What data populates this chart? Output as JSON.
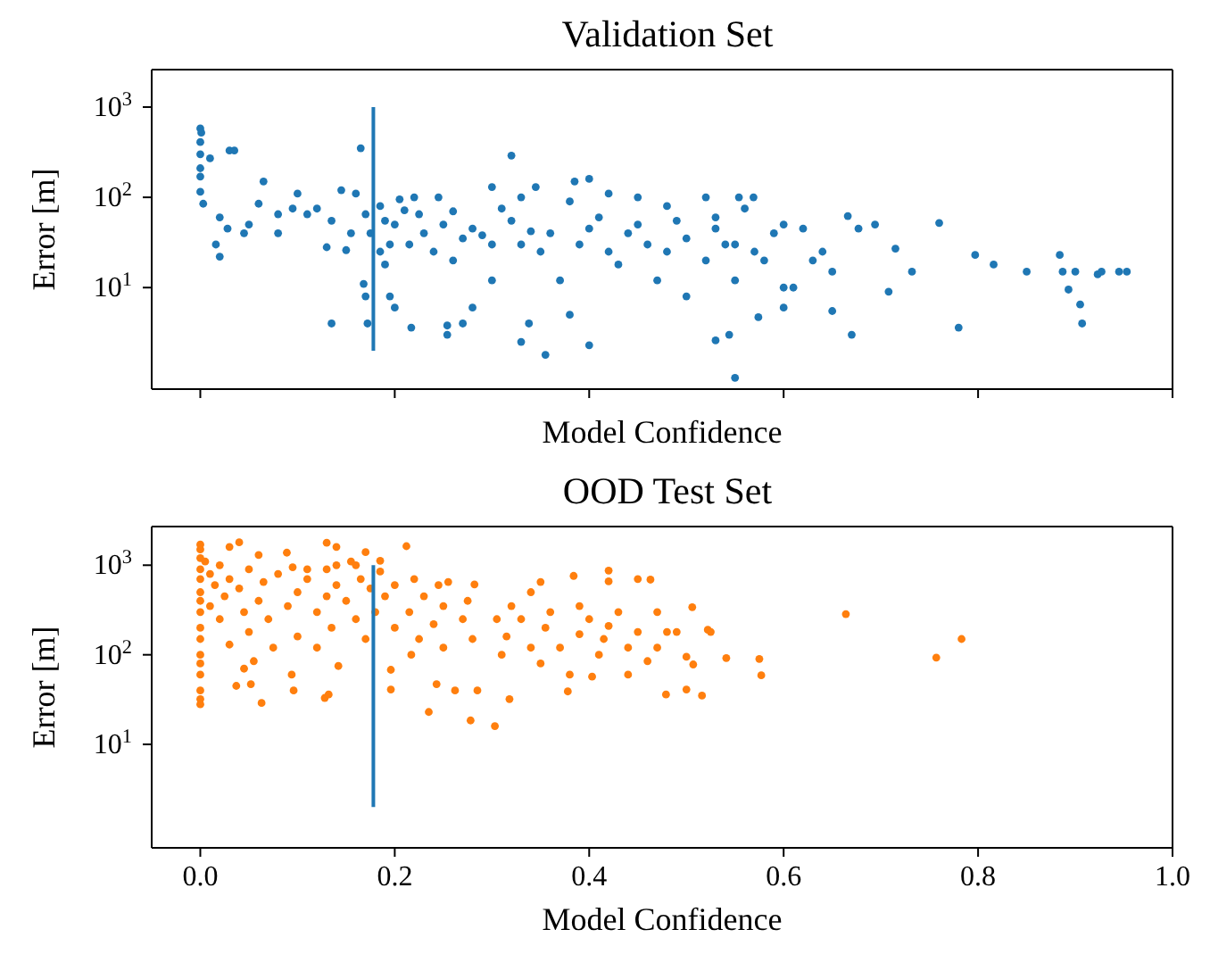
{
  "chart_data": [
    {
      "type": "scatter",
      "title": "Validation Set",
      "xlabel": "Model Confidence",
      "ylabel": "Error [m]",
      "xlim": [
        -0.05,
        1.0
      ],
      "xticks": [
        {
          "value": 0,
          "label": null
        },
        {
          "value": 0.2,
          "label": null
        },
        {
          "value": 0.4,
          "label": null
        },
        {
          "value": 0.6,
          "label": null
        },
        {
          "value": 0.8,
          "label": null
        },
        {
          "value": 1.0,
          "label": null
        }
      ],
      "ylim": [
        0.75,
        2600
      ],
      "yticks": [
        {
          "value": 10,
          "label": "10$^{1}$"
        },
        {
          "value": 100,
          "label": "10$^{2}$"
        },
        {
          "value": 1000,
          "label": "10$^{3}$"
        }
      ],
      "log": "y",
      "tick_labels": "y",
      "marker": "circle",
      "series": [
        {
          "color": "#1f77b4",
          "x": [
            0,
            0.001,
            0,
            0,
            0,
            0,
            0,
            0.003,
            0.01,
            0.02,
            0.016,
            0.02,
            0.03,
            0.035,
            0.028,
            0.045,
            0.06,
            0.05,
            0.065,
            0.08,
            0.08,
            0.1,
            0.095,
            0.11,
            0.12,
            0.13,
            0.135,
            0.145,
            0.155,
            0.16,
            0.15,
            0.165,
            0.17,
            0.175,
            0.135,
            0.172,
            0.168,
            0.17,
            0.185,
            0.19,
            0.195,
            0.19,
            0.205,
            0.21,
            0.22,
            0.2,
            0.23,
            0.185,
            0.195,
            0.2,
            0.217,
            0.254,
            0.254,
            0.215,
            0.225,
            0.24,
            0.245,
            0.25,
            0.26,
            0.26,
            0.27,
            0.28,
            0.29,
            0.3,
            0.31,
            0.3,
            0.32,
            0.33,
            0.28,
            0.27,
            0.33,
            0.34,
            0.35,
            0.36,
            0.37,
            0.32,
            0.3,
            0.345,
            0.38,
            0.385,
            0.4,
            0.39,
            0.4,
            0.41,
            0.42,
            0.42,
            0.43,
            0.44,
            0.45,
            0.45,
            0.46,
            0.47,
            0.48,
            0.49,
            0.5,
            0.5,
            0.52,
            0.53,
            0.55,
            0.55,
            0.56,
            0.58,
            0.59,
            0.6,
            0.6,
            0.61,
            0.63,
            0.355,
            0.4,
            0.338,
            0.33,
            0.38,
            0.53,
            0.544,
            0.55,
            0.574,
            0.6,
            0.65,
            0.67,
            0.666,
            0.677,
            0.694,
            0.715,
            0.732,
            0.708,
            0.76,
            0.78,
            0.797,
            0.816,
            0.85,
            0.884,
            0.887,
            0.893,
            0.905,
            0.907,
            0.9,
            0.923,
            0.927,
            0.945,
            0.953,
            0.48,
            0.52,
            0.53,
            0.54,
            0.57,
            0.554,
            0.569,
            0.62,
            0.64,
            0.65
          ],
          "values": [
            580,
            520,
            410,
            300,
            210,
            170,
            115,
            85,
            270,
            60,
            30,
            22,
            330,
            330,
            45,
            40,
            85,
            50,
            150,
            40,
            65,
            110,
            75,
            65,
            75,
            28,
            55,
            120,
            40,
            110,
            26,
            350,
            65,
            40,
            4,
            4,
            11,
            8,
            80,
            55,
            30,
            18,
            95,
            72,
            100,
            50,
            40,
            25,
            8,
            6,
            3.6,
            3.8,
            3,
            30,
            65,
            25,
            100,
            50,
            70,
            20,
            35,
            45,
            38,
            30,
            75,
            12,
            55,
            30,
            6,
            4,
            100,
            42,
            25,
            40,
            12,
            290,
            130,
            130,
            90,
            150,
            160,
            30,
            45,
            60,
            25,
            110,
            18,
            40,
            100,
            50,
            30,
            12,
            25,
            55,
            35,
            8,
            20,
            45,
            30,
            12,
            75,
            20,
            40,
            10,
            50,
            10,
            20,
            1.8,
            2.3,
            4,
            2.5,
            5,
            2.6,
            3,
            1,
            4.7,
            6,
            5.5,
            3,
            62,
            45,
            50,
            27,
            15,
            9,
            52,
            3.6,
            23,
            18,
            15,
            23,
            15,
            9.5,
            6.5,
            4,
            15,
            14,
            15,
            15,
            15,
            80,
            100,
            60,
            30,
            25,
            100,
            100,
            45,
            25,
            15
          ]
        },
        {
          "type": "line",
          "marker": "none",
          "color": "#1f77b4",
          "x": [
            0.178,
            0.178
          ],
          "values": [
            2,
            1000
          ]
        }
      ]
    },
    {
      "type": "scatter",
      "title": "OOD Test Set",
      "xlabel": "Model Confidence",
      "ylabel": "Error [m]",
      "xlim": [
        -0.05,
        1.0
      ],
      "xticks": [
        {
          "value": 0,
          "label": "0.0"
        },
        {
          "value": 0.2,
          "label": "0.2"
        },
        {
          "value": 0.4,
          "label": "0.4"
        },
        {
          "value": 0.6,
          "label": "0.6"
        },
        {
          "value": 0.8,
          "label": "0.8"
        },
        {
          "value": 1.0,
          "label": "1.0"
        }
      ],
      "ylim": [
        0.7,
        2700
      ],
      "yticks": [
        {
          "value": 10,
          "label": "10$^{1}$"
        },
        {
          "value": 100,
          "label": "10$^{2}$"
        },
        {
          "value": 1000,
          "label": "10$^{3}$"
        }
      ],
      "log": "y",
      "marker": "circle",
      "series": [
        {
          "color": "#ff7f0e",
          "x": [
            0,
            0,
            0,
            0,
            0,
            0,
            0,
            0,
            0,
            0,
            0,
            0,
            0,
            0,
            0,
            0,
            0.005,
            0.01,
            0.01,
            0.015,
            0.02,
            0.02,
            0.025,
            0.03,
            0.03,
            0.03,
            0.04,
            0.04,
            0.045,
            0.05,
            0.05,
            0.055,
            0.06,
            0.065,
            0.07,
            0.075,
            0.08,
            0.037,
            0.045,
            0.052,
            0.063,
            0.09,
            0.095,
            0.1,
            0.1,
            0.094,
            0.096,
            0.089,
            0.11,
            0.12,
            0.12,
            0.13,
            0.13,
            0.135,
            0.14,
            0.14,
            0.128,
            0.132,
            0.142,
            0.13,
            0.14,
            0.15,
            0.155,
            0.16,
            0.165,
            0.17,
            0.17,
            0.175,
            0.18,
            0.185,
            0.19,
            0.185,
            0.2,
            0.2,
            0.196,
            0.196,
            0.212,
            0.215,
            0.22,
            0.225,
            0.23,
            0.217,
            0.24,
            0.245,
            0.25,
            0.25,
            0.255,
            0.235,
            0.243,
            0.262,
            0.27,
            0.275,
            0.28,
            0.285,
            0.282,
            0.278,
            0.305,
            0.31,
            0.315,
            0.303,
            0.32,
            0.33,
            0.34,
            0.318,
            0.34,
            0.35,
            0.355,
            0.36,
            0.35,
            0.37,
            0.38,
            0.39,
            0.39,
            0.4,
            0.384,
            0.41,
            0.415,
            0.42,
            0.378,
            0.43,
            0.44,
            0.44,
            0.45,
            0.45,
            0.46,
            0.42,
            0.42,
            0.403,
            0.463,
            0.47,
            0.47,
            0.49,
            0.5,
            0.479,
            0.5,
            0.48,
            0.507,
            0.506,
            0.522,
            0.525,
            0.541,
            0.516,
            0.575,
            0.577,
            0.664,
            0.757,
            0.783,
            0.06,
            0.11,
            0.16
          ],
          "values": [
            1700,
            1500,
            1200,
            900,
            700,
            500,
            400,
            300,
            200,
            150,
            100,
            80,
            60,
            40,
            32,
            28,
            1100,
            800,
            350,
            600,
            1000,
            250,
            450,
            130,
            700,
            1600,
            1800,
            550,
            300,
            180,
            900,
            85,
            400,
            650,
            250,
            120,
            800,
            45,
            70,
            47,
            29,
            350,
            950,
            500,
            160,
            60,
            40,
            1380,
            700,
            300,
            120,
            900,
            450,
            200,
            1000,
            600,
            33,
            36,
            75,
            1780,
            1600,
            400,
            1100,
            250,
            700,
            150,
            1400,
            550,
            300,
            850,
            450,
            1120,
            600,
            200,
            68,
            41,
            1630,
            300,
            700,
            150,
            450,
            100,
            220,
            600,
            350,
            120,
            650,
            23,
            47,
            40,
            250,
            400,
            150,
            40,
            610,
            18.5,
            250,
            100,
            160,
            16,
            350,
            250,
            120,
            32,
            500,
            80,
            200,
            300,
            650,
            120,
            60,
            170,
            350,
            250,
            760,
            100,
            150,
            210,
            39,
            300,
            60,
            120,
            180,
            700,
            85,
            870,
            660,
            57,
            690,
            120,
            300,
            180,
            95,
            36,
            41,
            180,
            78,
            340,
            190,
            180,
            92,
            35,
            90,
            59,
            285,
            93,
            150,
            1300,
            900,
            1000
          ]
        },
        {
          "type": "line",
          "marker": "none",
          "color": "#1f77b4",
          "x": [
            0.178,
            0.178
          ],
          "values": [
            2,
            1000
          ]
        }
      ]
    }
  ]
}
